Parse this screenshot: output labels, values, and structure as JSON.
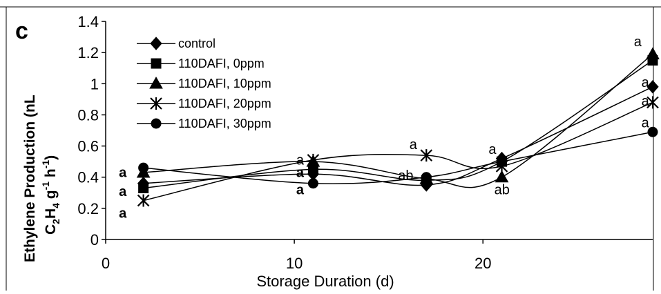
{
  "panel_label": "c",
  "chart_data": {
    "type": "line",
    "xlabel": "Storage Duration (d)",
    "ylabel_line1": "Ethylene Production (nL",
    "ylabel_line2_parts": [
      "C",
      "2",
      "H",
      "4",
      " g",
      "-1",
      " h",
      "-1",
      ")"
    ],
    "xlim": [
      0,
      29
    ],
    "ylim": [
      0,
      1.4
    ],
    "x_ticks": [
      0,
      10,
      20
    ],
    "x_tick_labels": [
      "0",
      "10",
      "20"
    ],
    "y_ticks": [
      0,
      0.2,
      0.4,
      0.6,
      0.8,
      1.0,
      1.2,
      1.4
    ],
    "y_tick_labels": [
      "0",
      "0.2",
      "0.4",
      "0.6",
      "0.8",
      "1",
      "1.2",
      "1.4"
    ],
    "grid": false,
    "legend_position": "top-left",
    "x": [
      2,
      11,
      17,
      21,
      29
    ],
    "series": [
      {
        "name": "control",
        "marker": "diamond",
        "values": [
          0.36,
          0.42,
          0.35,
          0.52,
          0.98
        ]
      },
      {
        "name": "110DAFI, 0ppm",
        "marker": "square",
        "values": [
          0.33,
          0.45,
          0.38,
          0.5,
          1.15
        ]
      },
      {
        "name": "110DAFI, 10ppm",
        "marker": "triangle",
        "values": [
          0.43,
          0.5,
          0.39,
          0.4,
          1.19
        ]
      },
      {
        "name": "110DAFI, 20ppm",
        "marker": "star",
        "values": [
          0.25,
          0.51,
          0.54,
          0.47,
          0.88
        ]
      },
      {
        "name": "110DAFI, 30ppm",
        "marker": "circle",
        "values": [
          0.46,
          0.36,
          0.4,
          0.5,
          0.69
        ]
      }
    ],
    "annotations": [
      {
        "text": "a",
        "x": 0.7,
        "y": 0.4,
        "bold": true
      },
      {
        "text": "a",
        "x": 0.7,
        "y": 0.28,
        "bold": true
      },
      {
        "text": "a",
        "x": 0.7,
        "y": 0.14,
        "bold": true
      },
      {
        "text": "a",
        "x": 10.1,
        "y": 0.48,
        "bold": false
      },
      {
        "text": "a",
        "x": 10.1,
        "y": 0.4,
        "bold": true
      },
      {
        "text": "a",
        "x": 10.1,
        "y": 0.29,
        "bold": true
      },
      {
        "text": "a",
        "x": 16.1,
        "y": 0.58,
        "bold": false
      },
      {
        "text": "ab",
        "x": 15.5,
        "y": 0.38,
        "bold": false
      },
      {
        "text": "a",
        "x": 20.3,
        "y": 0.55,
        "bold": false
      },
      {
        "text": "ab",
        "x": 20.6,
        "y": 0.29,
        "bold": false
      },
      {
        "text": "a",
        "x": 28.0,
        "y": 1.24,
        "bold": false
      },
      {
        "text": "a",
        "x": 28.4,
        "y": 0.98,
        "bold": false
      },
      {
        "text": "a",
        "x": 28.4,
        "y": 0.86,
        "bold": false
      },
      {
        "text": "a",
        "x": 28.4,
        "y": 0.72,
        "bold": false
      }
    ]
  }
}
